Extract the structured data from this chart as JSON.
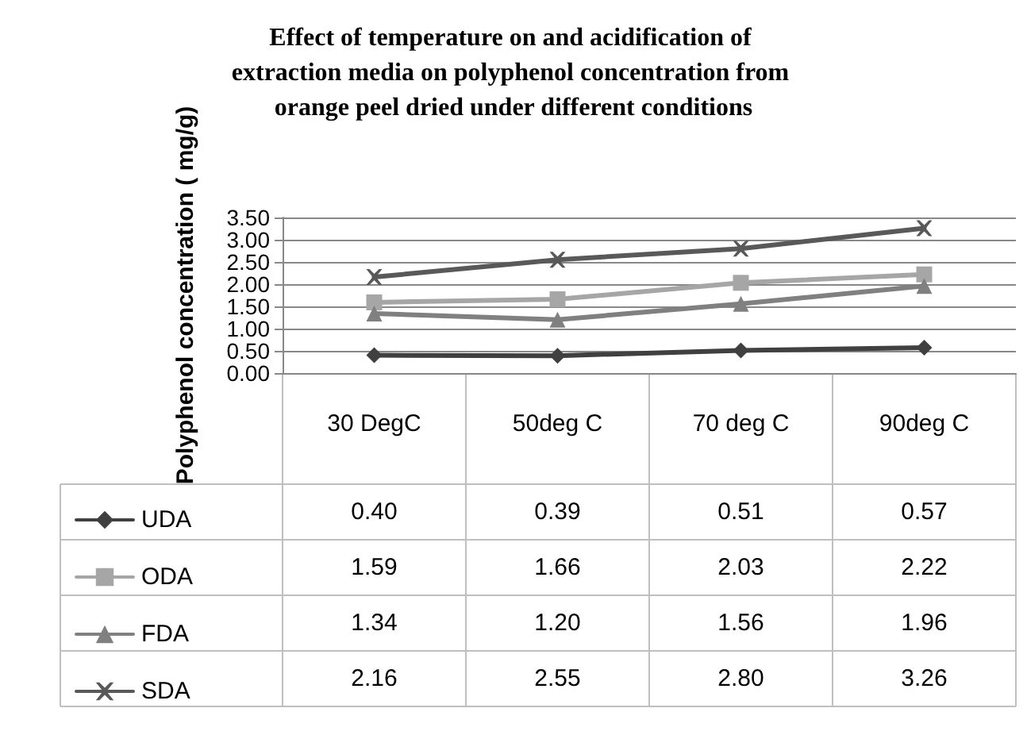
{
  "chart_data": {
    "type": "line",
    "title": "Effect of temperature on and acidification of extraction media on polyphenol concentration from orange peel dried under different conditions",
    "ylabel": "Polyphenol concentration ( mg/g)",
    "categories": [
      "30 DegC",
      "50deg C",
      "70 deg C",
      "90deg C"
    ],
    "series": [
      {
        "name": "UDA",
        "color": "#404040",
        "marker": "diamond",
        "values": [
          0.4,
          0.39,
          0.51,
          0.57
        ],
        "value_labels": [
          "0.40",
          "0.39",
          "0.51",
          "0.57"
        ]
      },
      {
        "name": "ODA",
        "color": "#a6a6a6",
        "marker": "square",
        "values": [
          1.59,
          1.66,
          2.03,
          2.22
        ],
        "value_labels": [
          "1.59",
          "1.66",
          "2.03",
          "2.22"
        ]
      },
      {
        "name": "FDA",
        "color": "#808080",
        "marker": "triangle",
        "values": [
          1.34,
          1.2,
          1.56,
          1.96
        ],
        "value_labels": [
          "1.34",
          "1.20",
          "1.56",
          "1.96"
        ]
      },
      {
        "name": "SDA",
        "color": "#595959",
        "marker": "cross",
        "values": [
          2.16,
          2.55,
          2.8,
          3.26
        ],
        "value_labels": [
          "2.16",
          "2.55",
          "2.80",
          "3.26"
        ]
      }
    ],
    "ylim": [
      0,
      3.5
    ],
    "yticks": [
      {
        "value": 0,
        "label": "0.00"
      },
      {
        "value": 0.5,
        "label": "0.50"
      },
      {
        "value": 1,
        "label": "1.00"
      },
      {
        "value": 1.5,
        "label": "1.50"
      },
      {
        "value": 2,
        "label": "2.00"
      },
      {
        "value": 2.5,
        "label": "2.50"
      },
      {
        "value": 3,
        "label": "3.00"
      },
      {
        "value": 3.5,
        "label": "3.50"
      }
    ],
    "grid": "y",
    "legend": "bottom left",
    "line_style": "solid"
  }
}
